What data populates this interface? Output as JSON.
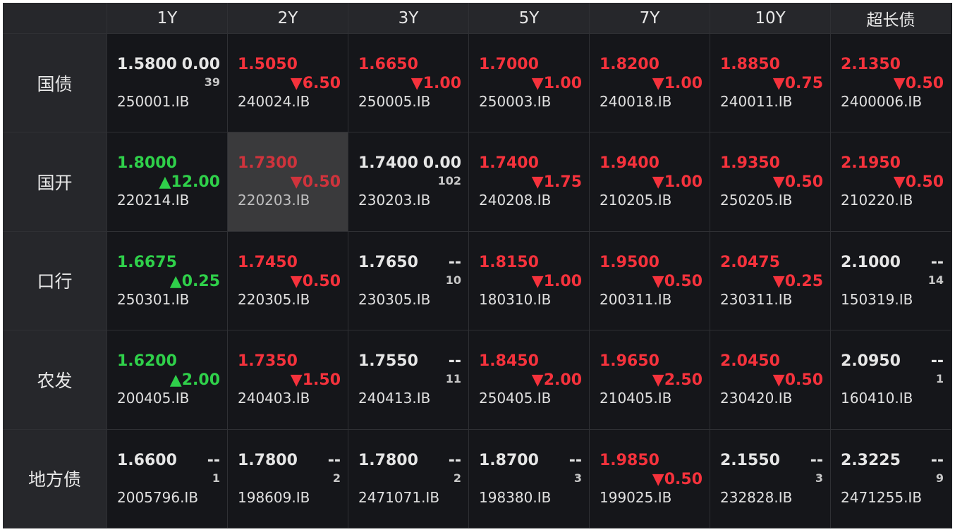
{
  "table": {
    "headers": [
      "1Y",
      "2Y",
      "3Y",
      "5Y",
      "7Y",
      "10Y",
      "超长债"
    ],
    "rows": [
      {
        "label": "国债",
        "cells": [
          {
            "rate": "1.5800",
            "change": "0.00",
            "count": "39",
            "code": "250001.IB",
            "color": "#e6e6e6"
          },
          {
            "rate": "1.5050",
            "change": "▼6.50",
            "code": "240024.IB",
            "color": "#f5323c"
          },
          {
            "rate": "1.6650",
            "change": "▼1.00",
            "code": "250005.IB",
            "color": "#f5323c"
          },
          {
            "rate": "1.7000",
            "change": "▼1.00",
            "code": "250003.IB",
            "color": "#f5323c"
          },
          {
            "rate": "1.8200",
            "change": "▼1.00",
            "code": "240018.IB",
            "color": "#f5323c"
          },
          {
            "rate": "1.8850",
            "change": "▼0.75",
            "code": "240011.IB",
            "color": "#f5323c"
          },
          {
            "rate": "2.1350",
            "change": "▼0.50",
            "code": "2400006.IB",
            "color": "#f5323c"
          }
        ]
      },
      {
        "label": "国开",
        "cells": [
          {
            "rate": "1.8000",
            "change": "▲12.00",
            "code": "220214.IB",
            "color": "#2fd04a"
          },
          {
            "rate": "1.7300",
            "change": "▼0.50",
            "code": "220203.IB",
            "color": "#f5323c",
            "selected": true
          },
          {
            "rate": "1.7400",
            "change": "0.00",
            "count": "102",
            "code": "230203.IB",
            "color": "#e6e6e6"
          },
          {
            "rate": "1.7400",
            "change": "▼1.75",
            "code": "240208.IB",
            "color": "#f5323c"
          },
          {
            "rate": "1.9400",
            "change": "▼1.00",
            "code": "210205.IB",
            "color": "#f5323c"
          },
          {
            "rate": "1.9350",
            "change": "▼0.50",
            "code": "250205.IB",
            "color": "#f5323c"
          },
          {
            "rate": "2.1950",
            "change": "▼0.50",
            "code": "210220.IB",
            "color": "#f5323c"
          }
        ]
      },
      {
        "label": "口行",
        "cells": [
          {
            "rate": "1.6675",
            "change": "▲0.25",
            "code": "250301.IB",
            "color": "#2fd04a"
          },
          {
            "rate": "1.7450",
            "change": "▼0.50",
            "code": "220305.IB",
            "color": "#f5323c"
          },
          {
            "rate": "1.7650",
            "change": "--",
            "count": "10",
            "code": "230305.IB",
            "color": "#e6e6e6"
          },
          {
            "rate": "1.8150",
            "change": "▼1.00",
            "code": "180310.IB",
            "color": "#f5323c"
          },
          {
            "rate": "1.9500",
            "change": "▼0.50",
            "code": "200311.IB",
            "color": "#f5323c"
          },
          {
            "rate": "2.0475",
            "change": "▼0.25",
            "code": "230311.IB",
            "color": "#f5323c"
          },
          {
            "rate": "2.1000",
            "change": "--",
            "count": "14",
            "code": "150319.IB",
            "color": "#e6e6e6"
          }
        ]
      },
      {
        "label": "农发",
        "cells": [
          {
            "rate": "1.6200",
            "change": "▲2.00",
            "code": "200405.IB",
            "color": "#2fd04a"
          },
          {
            "rate": "1.7350",
            "change": "▼1.50",
            "code": "240403.IB",
            "color": "#f5323c"
          },
          {
            "rate": "1.7550",
            "change": "--",
            "count": "11",
            "code": "240413.IB",
            "color": "#e6e6e6"
          },
          {
            "rate": "1.8450",
            "change": "▼2.00",
            "code": "250405.IB",
            "color": "#f5323c"
          },
          {
            "rate": "1.9650",
            "change": "▼2.50",
            "code": "210405.IB",
            "color": "#f5323c"
          },
          {
            "rate": "2.0450",
            "change": "▼0.50",
            "code": "230420.IB",
            "color": "#f5323c"
          },
          {
            "rate": "2.0950",
            "change": "--",
            "count": "1",
            "code": "160410.IB",
            "color": "#e6e6e6"
          }
        ]
      },
      {
        "label": "地方债",
        "cells": [
          {
            "rate": "1.6600",
            "change": "--",
            "count": "1",
            "code": "2005796.IB",
            "color": "#e6e6e6"
          },
          {
            "rate": "1.7800",
            "change": "--",
            "count": "2",
            "code": "198609.IB",
            "color": "#e6e6e6"
          },
          {
            "rate": "1.7800",
            "change": "--",
            "count": "2",
            "code": "2471071.IB",
            "color": "#e6e6e6"
          },
          {
            "rate": "1.8700",
            "change": "--",
            "count": "3",
            "code": "198380.IB",
            "color": "#e6e6e6"
          },
          {
            "rate": "1.9850",
            "change": "▼0.50",
            "code": "199025.IB",
            "color": "#f5323c"
          },
          {
            "rate": "2.1550",
            "change": "--",
            "count": "3",
            "code": "232828.IB",
            "color": "#e6e6e6"
          },
          {
            "rate": "2.3225",
            "change": "--",
            "count": "9",
            "code": "2471255.IB",
            "color": "#e6e6e6"
          }
        ]
      }
    ]
  }
}
